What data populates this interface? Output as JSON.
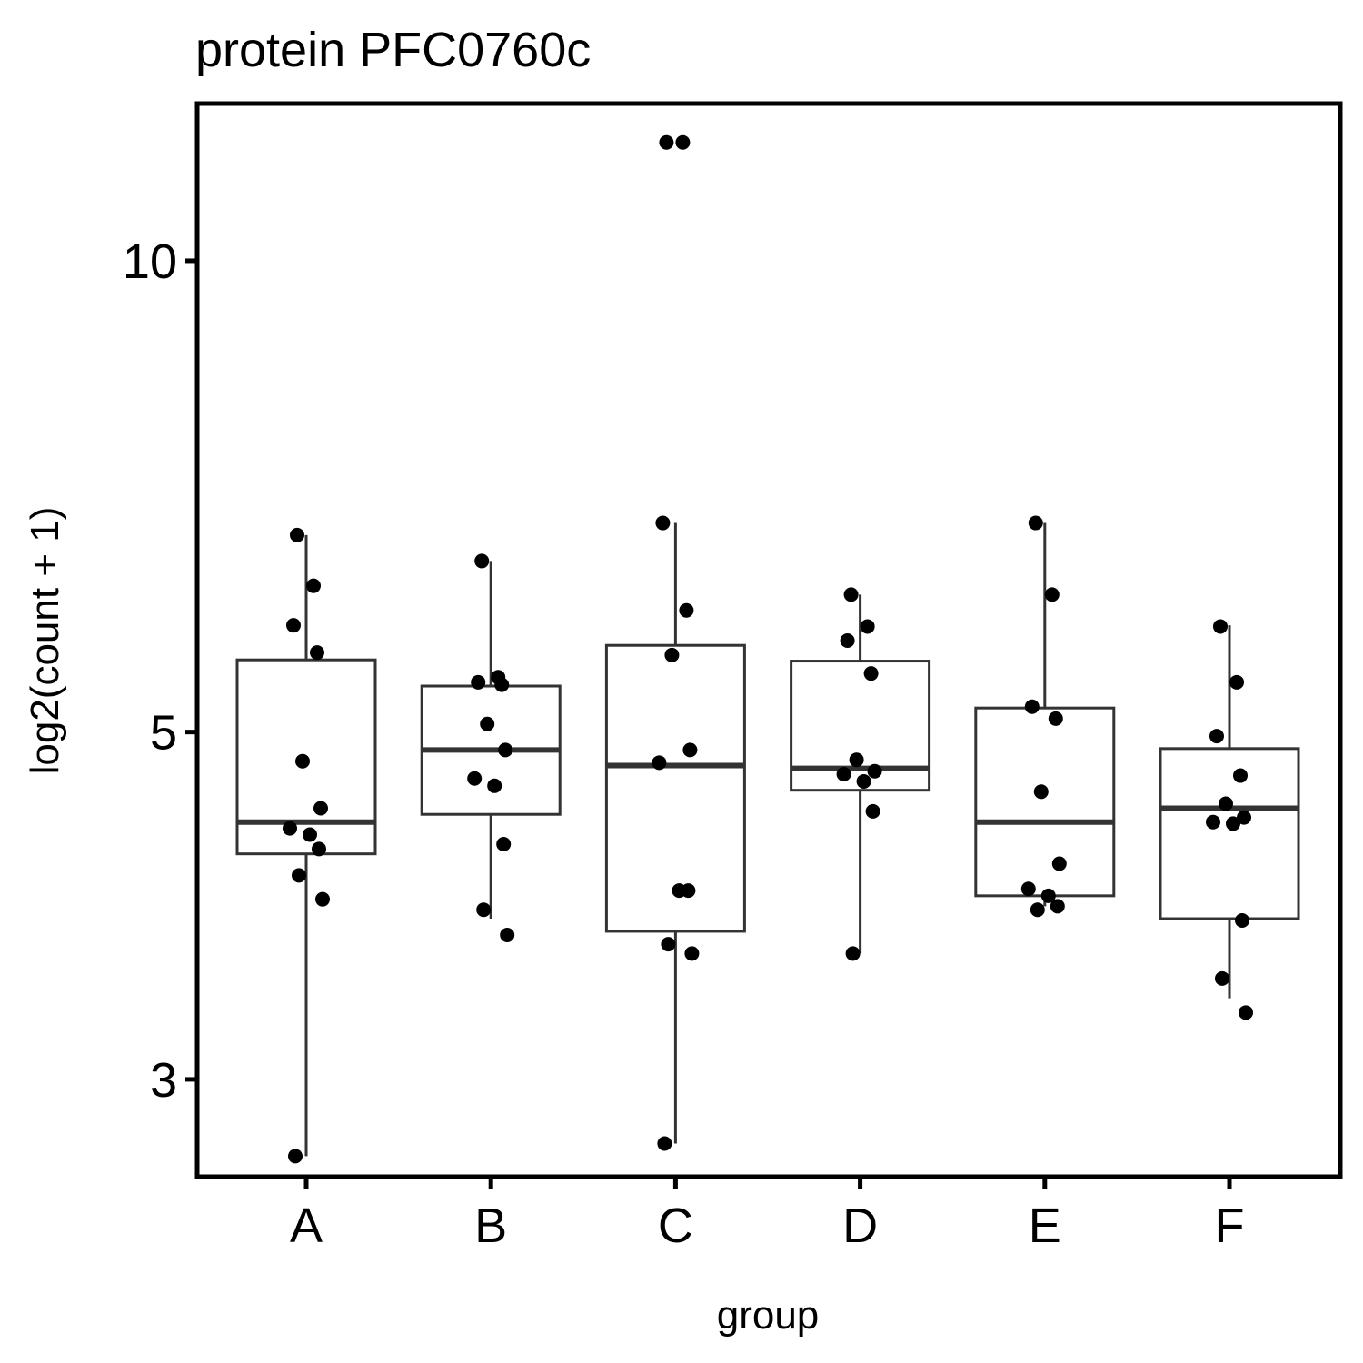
{
  "chart_data": {
    "type": "box",
    "title": "protein PFC0760c",
    "xlabel": "group",
    "ylabel": "log2(count + 1)",
    "y_scale": "log",
    "ylim": [
      2.6,
      12.6
    ],
    "yticks": [
      3,
      5,
      10
    ],
    "grid": false,
    "legend": "none",
    "categories": [
      "A",
      "B",
      "C",
      "D",
      "E",
      "F"
    ],
    "boxes": [
      {
        "group": "A",
        "whisker_low": 2.68,
        "q1": 4.18,
        "median": 4.38,
        "q3": 5.56,
        "whisker_high": 6.68
      },
      {
        "group": "B",
        "whisker_low": 3.8,
        "q1": 4.43,
        "median": 4.87,
        "q3": 5.35,
        "whisker_high": 6.43
      },
      {
        "group": "C",
        "whisker_low": 2.73,
        "q1": 3.73,
        "median": 4.76,
        "q3": 5.68,
        "whisker_high": 6.8
      },
      {
        "group": "D",
        "whisker_low": 3.61,
        "q1": 4.59,
        "median": 4.74,
        "q3": 5.55,
        "whisker_high": 6.12
      },
      {
        "group": "E",
        "whisker_low": 3.87,
        "q1": 3.93,
        "median": 4.38,
        "q3": 5.18,
        "whisker_high": 6.8
      },
      {
        "group": "F",
        "whisker_low": 3.38,
        "q1": 3.8,
        "median": 4.47,
        "q3": 4.88,
        "whisker_high": 5.85
      }
    ],
    "points": [
      {
        "group": "A",
        "values": [
          6.68,
          6.2,
          5.85,
          5.62,
          4.79,
          4.47,
          4.34,
          4.3,
          4.21,
          4.05,
          3.91,
          2.68
        ]
      },
      {
        "group": "B",
        "values": [
          6.43,
          5.42,
          5.38,
          5.36,
          5.06,
          4.87,
          4.67,
          4.62,
          4.24,
          3.85,
          3.71
        ]
      },
      {
        "group": "C",
        "values": [
          11.9,
          11.9,
          6.8,
          5.98,
          5.6,
          4.87,
          4.78,
          3.96,
          3.96,
          3.66,
          3.61,
          2.73
        ]
      },
      {
        "group": "D",
        "values": [
          6.12,
          5.84,
          5.72,
          5.45,
          4.8,
          4.72,
          4.7,
          4.65,
          4.45,
          3.61
        ]
      },
      {
        "group": "E",
        "values": [
          6.8,
          6.12,
          5.19,
          5.1,
          4.58,
          4.12,
          3.97,
          3.93,
          3.87,
          3.85
        ]
      },
      {
        "group": "F",
        "values": [
          5.84,
          5.38,
          4.97,
          4.69,
          4.5,
          4.41,
          4.38,
          4.37,
          3.79,
          3.48,
          3.31
        ]
      }
    ]
  }
}
